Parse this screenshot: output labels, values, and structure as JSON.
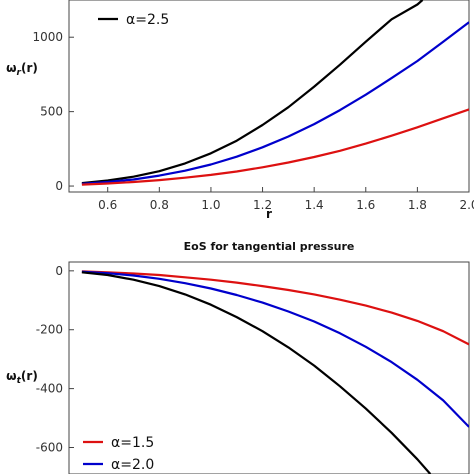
{
  "chart_data": [
    {
      "type": "line",
      "title": "",
      "xlabel": "r",
      "ylabel_main": "ω",
      "ylabel_sub": "r",
      "ylabel_arg": "(r)",
      "xlim": [
        0.45,
        2.0
      ],
      "ylim": [
        -40,
        1250
      ],
      "xticks": [
        0.6,
        0.8,
        1.0,
        1.2,
        1.4,
        1.6,
        1.8,
        2.0
      ],
      "xtick_labels": [
        "0.6",
        "0.8",
        "1.0",
        "1.2",
        "1.4",
        "1.6",
        "1.8",
        "2.0"
      ],
      "yticks": [
        0,
        500,
        1000
      ],
      "ytick_labels": [
        "0",
        "500",
        "1000"
      ],
      "grid": false,
      "legend": {
        "placement": "top-left",
        "entries": [
          "α=2.5"
        ]
      },
      "series": [
        {
          "name": "α=2.5",
          "color": "#000000",
          "x": [
            0.5,
            0.6,
            0.7,
            0.8,
            0.9,
            1.0,
            1.1,
            1.2,
            1.3,
            1.4,
            1.5,
            1.6,
            1.7,
            1.8,
            1.82
          ],
          "y": [
            20,
            37,
            63,
            100,
            152,
            220,
            305,
            410,
            530,
            668,
            815,
            970,
            1120,
            1220,
            1250
          ]
        },
        {
          "name": "",
          "color": "#0000cc",
          "x": [
            0.5,
            0.6,
            0.7,
            0.8,
            0.9,
            1.0,
            1.1,
            1.2,
            1.3,
            1.4,
            1.5,
            1.6,
            1.7,
            1.8,
            1.9,
            2.0
          ],
          "y": [
            15,
            27,
            44,
            70,
            103,
            145,
            197,
            260,
            333,
            416,
            510,
            614,
            725,
            840,
            970,
            1100
          ]
        },
        {
          "name": "",
          "color": "#dd1111",
          "x": [
            0.5,
            0.6,
            0.7,
            0.8,
            0.9,
            1.0,
            1.1,
            1.2,
            1.3,
            1.4,
            1.5,
            1.6,
            1.7,
            1.8,
            1.9,
            2.0
          ],
          "y": [
            10,
            17,
            27,
            40,
            56,
            75,
            98,
            126,
            158,
            195,
            237,
            285,
            338,
            395,
            455,
            515
          ]
        }
      ]
    },
    {
      "type": "line",
      "title": "EoS for tangential pressure",
      "xlabel": "",
      "ylabel_main": "ω",
      "ylabel_sub": "t",
      "ylabel_arg": "(r)",
      "xlim": [
        0.45,
        2.0
      ],
      "ylim": [
        -690,
        30
      ],
      "xticks": [],
      "xtick_labels": [],
      "yticks": [
        0,
        -200,
        -400,
        -600
      ],
      "ytick_labels": [
        "0",
        "-200",
        "-400",
        "-600"
      ],
      "grid": false,
      "legend": {
        "placement": "bottom-left",
        "entries": [
          "α=1.5",
          "α=2.0"
        ]
      },
      "series": [
        {
          "name": "α=1.5",
          "color": "#dd1111",
          "x": [
            0.5,
            0.6,
            0.7,
            0.8,
            0.9,
            1.0,
            1.1,
            1.2,
            1.3,
            1.4,
            1.5,
            1.6,
            1.7,
            1.8,
            1.9,
            2.0
          ],
          "y": [
            -2,
            -5,
            -9,
            -14,
            -22,
            -30,
            -40,
            -52,
            -65,
            -80,
            -98,
            -118,
            -142,
            -170,
            -205,
            -250
          ]
        },
        {
          "name": "α=2.0",
          "color": "#0000cc",
          "x": [
            0.5,
            0.6,
            0.7,
            0.8,
            0.9,
            1.0,
            1.1,
            1.2,
            1.3,
            1.4,
            1.5,
            1.6,
            1.7,
            1.8,
            1.9,
            2.0
          ],
          "y": [
            -3,
            -8,
            -16,
            -27,
            -42,
            -60,
            -82,
            -108,
            -138,
            -172,
            -212,
            -258,
            -310,
            -370,
            -440,
            -530
          ]
        },
        {
          "name": "",
          "color": "#000000",
          "x": [
            0.5,
            0.6,
            0.7,
            0.8,
            0.9,
            1.0,
            1.1,
            1.2,
            1.3,
            1.4,
            1.5,
            1.6,
            1.7,
            1.8,
            1.85
          ],
          "y": [
            -5,
            -14,
            -30,
            -52,
            -80,
            -115,
            -157,
            -205,
            -260,
            -322,
            -392,
            -468,
            -550,
            -640,
            -690
          ]
        }
      ]
    }
  ]
}
